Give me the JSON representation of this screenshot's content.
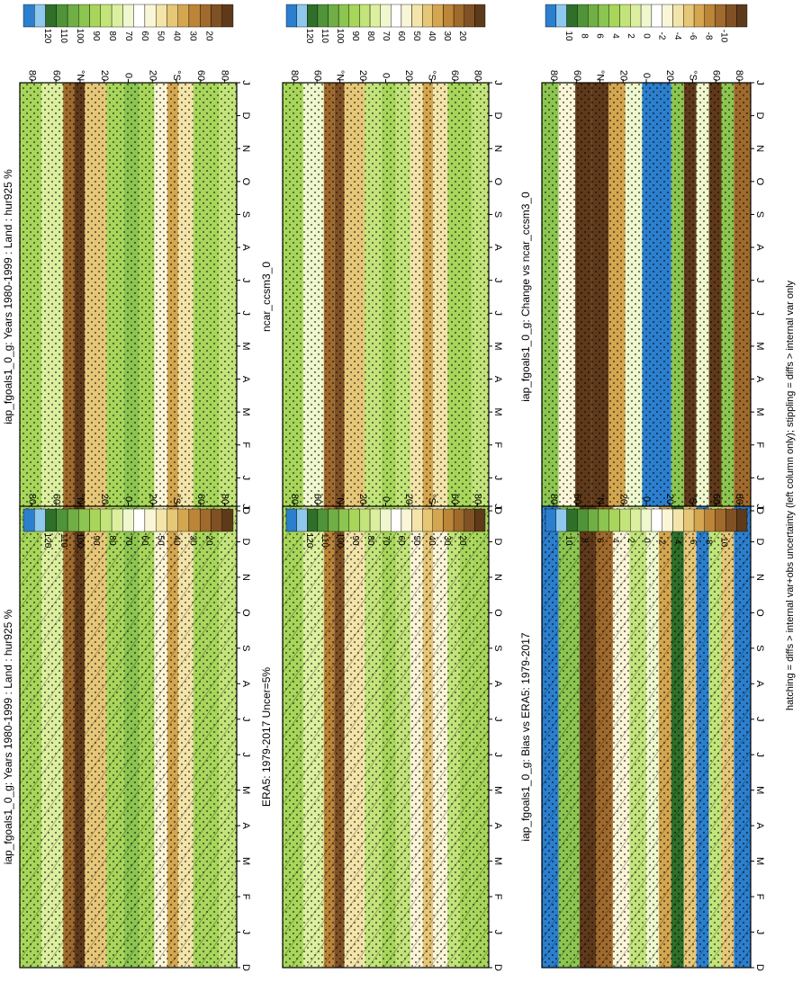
{
  "footnote": "hatching = diffs > internal var+obs uncertainty (left column only); stippling = diffs > internal var only",
  "axes": {
    "months": [
      "D",
      "J",
      "F",
      "M",
      "A",
      "M",
      "J",
      "J",
      "A",
      "S",
      "O",
      "N",
      "D",
      "J"
    ],
    "lat_ticks": [
      "80",
      "60",
      "°N",
      "20",
      "0",
      "20",
      "°S",
      "60",
      "80"
    ]
  },
  "colorbars": {
    "abs": [
      "120",
      "110",
      "100",
      "90",
      "80",
      "70",
      "60",
      "50",
      "40",
      "30",
      "20"
    ],
    "diff": [
      "10",
      "8",
      "6",
      "4",
      "2",
      "0",
      "-2",
      "-4",
      "-6",
      "-8",
      "-10"
    ]
  },
  "palettes": {
    "abs": [
      "#2b7fce",
      "#8fc8ee",
      "#2f6f2a",
      "#4f9438",
      "#6faf45",
      "#8cc550",
      "#a7d65a",
      "#c2e47a",
      "#dcef9e",
      "#eef7cd",
      "#ffffff",
      "#fbf5d8",
      "#f3e4a9",
      "#e6c778",
      "#d4a64f",
      "#bc8538",
      "#9f6a2c",
      "#7f5124",
      "#5f3a1a"
    ],
    "diff": [
      "#2b7fce",
      "#8fc8ee",
      "#2f6f2a",
      "#4f9438",
      "#6faf45",
      "#8cc550",
      "#a7d65a",
      "#c2e47a",
      "#dcef9e",
      "#eef7cd",
      "#ffffff",
      "#fbf5d8",
      "#f3e4a9",
      "#e6c778",
      "#d4a64f",
      "#bc8538",
      "#9f6a2c",
      "#7f5124",
      "#5f3a1a"
    ]
  },
  "chart_data": [
    {
      "type": "heatmap",
      "title": "iap_fgoals1_0_g: Years 1980-1999 : Land : hur925 %",
      "x": "months",
      "y": "latitude",
      "colorbar": "abs",
      "clim": [
        20,
        120
      ],
      "lat_profile": [
        [
          "0",
          "88"
        ],
        [
          "10",
          "74"
        ],
        [
          "20",
          "30"
        ],
        [
          "25",
          "22"
        ],
        [
          "30",
          "50"
        ],
        [
          "40",
          "84"
        ],
        [
          "48",
          "92"
        ],
        [
          "55",
          "84"
        ],
        [
          "62",
          "60"
        ],
        [
          "68",
          "40"
        ],
        [
          "73",
          "55"
        ],
        [
          "80",
          "84"
        ],
        [
          "86",
          "88"
        ],
        [
          "92",
          "80"
        ],
        [
          "100",
          "86"
        ]
      ]
    },
    {
      "type": "heatmap",
      "title": "iap_fgoals1_0_g: Years 1980-1999 : Land : hur925 %",
      "x": "months",
      "y": "latitude",
      "colorbar": "abs",
      "clim": [
        20,
        120
      ],
      "lat_profile": [
        [
          "0",
          "88"
        ],
        [
          "10",
          "74"
        ],
        [
          "20",
          "30"
        ],
        [
          "25",
          "22"
        ],
        [
          "30",
          "50"
        ],
        [
          "40",
          "84"
        ],
        [
          "48",
          "92"
        ],
        [
          "55",
          "84"
        ],
        [
          "62",
          "60"
        ],
        [
          "68",
          "40"
        ],
        [
          "73",
          "55"
        ],
        [
          "80",
          "84"
        ],
        [
          "86",
          "88"
        ],
        [
          "92",
          "80"
        ],
        [
          "100",
          "86"
        ]
      ]
    },
    {
      "type": "heatmap",
      "title": "ERA5: 1979-2017 Uncer=5%",
      "x": "months",
      "y": "latitude",
      "colorbar": "abs",
      "clim": [
        20,
        120
      ],
      "lat_profile": [
        [
          "0",
          "86"
        ],
        [
          "10",
          "76"
        ],
        [
          "20",
          "38"
        ],
        [
          "25",
          "28"
        ],
        [
          "30",
          "52"
        ],
        [
          "40",
          "82"
        ],
        [
          "48",
          "88"
        ],
        [
          "55",
          "80"
        ],
        [
          "62",
          "58"
        ],
        [
          "68",
          "46"
        ],
        [
          "73",
          "58"
        ],
        [
          "80",
          "82"
        ],
        [
          "86",
          "86"
        ],
        [
          "92",
          "84"
        ],
        [
          "100",
          "86"
        ]
      ]
    },
    {
      "type": "heatmap",
      "title": "ncar_ccsm3_0",
      "x": "months",
      "y": "latitude",
      "colorbar": "abs",
      "clim": [
        20,
        120
      ],
      "lat_profile": [
        [
          "0",
          "86"
        ],
        [
          "10",
          "72"
        ],
        [
          "20",
          "32"
        ],
        [
          "25",
          "24"
        ],
        [
          "30",
          "48"
        ],
        [
          "40",
          "80"
        ],
        [
          "48",
          "88"
        ],
        [
          "55",
          "80"
        ],
        [
          "62",
          "56"
        ],
        [
          "68",
          "42"
        ],
        [
          "73",
          "56"
        ],
        [
          "80",
          "84"
        ],
        [
          "86",
          "86"
        ],
        [
          "92",
          "82"
        ],
        [
          "100",
          "86"
        ]
      ]
    },
    {
      "type": "heatmap",
      "title": "iap_fgoals1_0_g: Bias vs ERA5: 1979-2017",
      "x": "months",
      "y": "latitude",
      "colorbar": "diff",
      "clim": [
        -10,
        10
      ],
      "lat_profile": [
        [
          "0",
          "10"
        ],
        [
          "8",
          "4"
        ],
        [
          "18",
          "-10"
        ],
        [
          "26",
          "-8"
        ],
        [
          "34",
          "-2"
        ],
        [
          "42",
          "2"
        ],
        [
          "50",
          "0"
        ],
        [
          "56",
          "-6"
        ],
        [
          "62",
          "8"
        ],
        [
          "68",
          "-4"
        ],
        [
          "74",
          "10"
        ],
        [
          "80",
          "2"
        ],
        [
          "86",
          "-4"
        ],
        [
          "92",
          "10"
        ],
        [
          "100",
          "-6"
        ]
      ]
    },
    {
      "type": "heatmap",
      "title": "iap_fgoals1_0_g: Change vs ncar_ccsm3_0",
      "x": "months",
      "y": "latitude",
      "colorbar": "diff",
      "clim": [
        -10,
        10
      ],
      "lat_profile": [
        [
          "0",
          "4"
        ],
        [
          "8",
          "-2"
        ],
        [
          "16",
          "-10"
        ],
        [
          "24",
          "-10"
        ],
        [
          "32",
          "-6"
        ],
        [
          "40",
          "0"
        ],
        [
          "48",
          "10"
        ],
        [
          "56",
          "10"
        ],
        [
          "62",
          "4"
        ],
        [
          "68",
          "-10"
        ],
        [
          "74",
          "0"
        ],
        [
          "80",
          "-10"
        ],
        [
          "86",
          "4"
        ],
        [
          "92",
          "-8"
        ],
        [
          "100",
          "4"
        ]
      ]
    }
  ]
}
